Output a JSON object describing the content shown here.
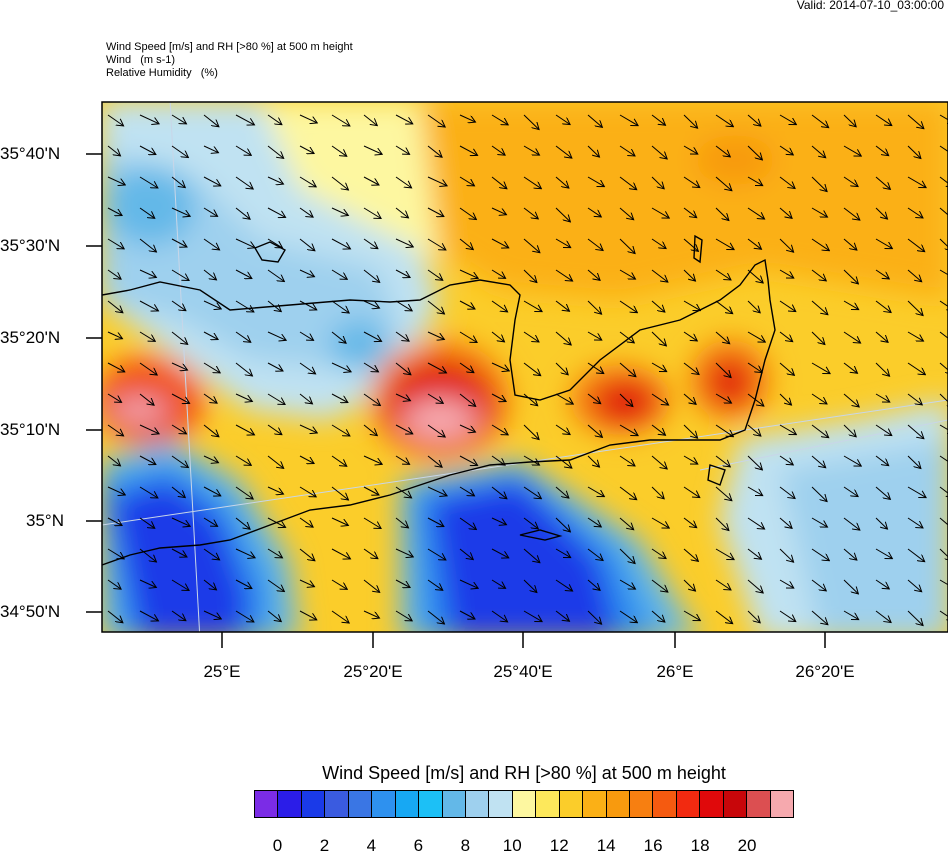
{
  "valid_time": "Valid: 2014-07-10_03:00:00",
  "header": {
    "line1": "Wind Speed [m/s] and RH [>80 %] at 500 m height",
    "line2": "Wind   (m s-1)",
    "line3": "Relative Humidity   (%)"
  },
  "axes": {
    "lat_labels": [
      "35°40'N",
      "35°30'N",
      "35°20'N",
      "35°10'N",
      "35°N",
      "34°50'N"
    ],
    "lon_labels": [
      "25°E",
      "25°20'E",
      "25°40'E",
      "26°E",
      "26°20'E"
    ]
  },
  "colorbar": {
    "title": "Wind Speed [m/s] and RH [>80 %] at 500 m height",
    "colors": [
      "#7b2ce6",
      "#2b1de8",
      "#1a3ae8",
      "#3a5be0",
      "#3a76e4",
      "#2e91ef",
      "#17a8f3",
      "#1cc0f6",
      "#63b8e8",
      "#9ed0ee",
      "#c0e2f2",
      "#fdf7a0",
      "#fde85b",
      "#fbcd2a",
      "#fbb016",
      "#f89a0e",
      "#f77f11",
      "#f55a10",
      "#f22a10",
      "#e0090b",
      "#c8060a",
      "#dc4f51",
      "#f6a9ae"
    ],
    "ticks": [
      "0",
      "2",
      "4",
      "6",
      "8",
      "10",
      "12",
      "14",
      "16",
      "18",
      "20"
    ]
  }
}
